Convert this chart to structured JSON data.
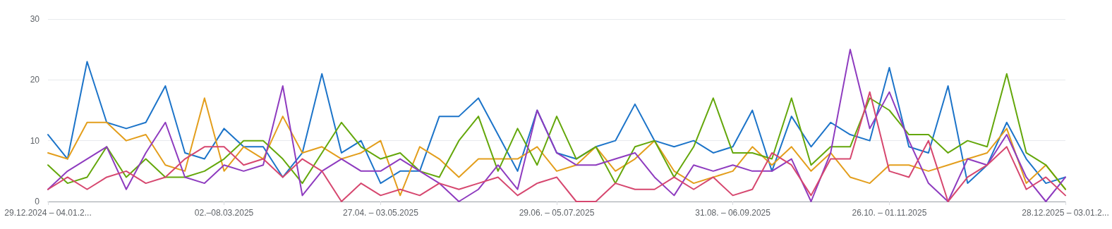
{
  "chart_data": {
    "type": "line",
    "categories": [
      "29.12.2024 – 04.01.2...",
      null,
      null,
      null,
      null,
      null,
      null,
      null,
      null,
      "02.–08.03.2025",
      null,
      null,
      null,
      null,
      null,
      null,
      null,
      "27.04. – 03.05.2025",
      null,
      null,
      null,
      null,
      null,
      null,
      null,
      null,
      "29.06. – 05.07.2025",
      null,
      null,
      null,
      null,
      null,
      null,
      null,
      null,
      "31.08. – 06.09.2025",
      null,
      null,
      null,
      null,
      null,
      null,
      null,
      "26.10. – 01.11.2025",
      null,
      null,
      null,
      null,
      null,
      null,
      null,
      null,
      "28.12.2025 – 03.01.2..."
    ],
    "series": [
      {
        "color": "#1c74c9",
        "values": [
          11,
          7,
          23,
          13,
          12,
          13,
          19,
          8,
          7,
          12,
          9,
          9,
          4,
          8,
          21,
          8,
          10,
          3,
          5,
          5,
          14,
          14,
          17,
          11,
          5,
          15,
          8,
          7,
          9,
          10,
          16,
          10,
          9,
          10,
          8,
          9,
          15,
          5,
          14,
          9,
          13,
          11,
          10,
          22,
          9,
          8,
          19,
          3,
          6,
          13,
          7,
          3,
          4
        ]
      },
      {
        "color": "#e39e1c",
        "values": [
          8,
          7,
          13,
          13,
          10,
          11,
          6,
          5,
          17,
          5,
          9,
          7,
          14,
          8,
          9,
          7,
          8,
          10,
          1,
          9,
          7,
          4,
          7,
          7,
          7,
          9,
          5,
          6,
          9,
          5,
          7,
          10,
          5,
          3,
          4,
          5,
          9,
          6,
          9,
          5,
          8,
          4,
          3,
          6,
          6,
          5,
          6,
          7,
          8,
          12,
          3,
          6,
          2
        ]
      },
      {
        "color": "#64a70b",
        "values": [
          6,
          3,
          4,
          9,
          4,
          7,
          4,
          4,
          5,
          7,
          10,
          10,
          7,
          3,
          8,
          13,
          9,
          7,
          8,
          5,
          4,
          10,
          14,
          5,
          12,
          6,
          14,
          7,
          9,
          3,
          9,
          10,
          4,
          9,
          17,
          8,
          8,
          7,
          17,
          6,
          9,
          9,
          17,
          15,
          11,
          11,
          8,
          10,
          9,
          21,
          8,
          6,
          2
        ]
      },
      {
        "color": "#8e3bbf",
        "values": [
          2,
          5,
          7,
          9,
          2,
          8,
          13,
          4,
          3,
          6,
          5,
          6,
          19,
          1,
          5,
          7,
          5,
          5,
          7,
          5,
          3,
          0,
          2,
          6,
          2,
          15,
          8,
          6,
          6,
          7,
          8,
          4,
          1,
          6,
          5,
          6,
          5,
          5,
          7,
          0,
          8,
          25,
          12,
          18,
          10,
          3,
          0,
          7,
          6,
          11,
          4,
          0,
          4
        ]
      },
      {
        "color": "#d6476f",
        "values": [
          2,
          4,
          2,
          4,
          5,
          3,
          4,
          7,
          9,
          9,
          6,
          7,
          4,
          7,
          5,
          0,
          3,
          1,
          2,
          1,
          3,
          2,
          3,
          4,
          1,
          3,
          4,
          0,
          0,
          3,
          2,
          2,
          4,
          2,
          4,
          1,
          2,
          8,
          6,
          1,
          7,
          7,
          18,
          5,
          4,
          10,
          0,
          4,
          6,
          9,
          2,
          4,
          1
        ]
      }
    ],
    "ylim": [
      0,
      30
    ],
    "yticks": [
      0,
      10,
      20,
      30
    ],
    "grid": "y",
    "marker": "none",
    "line_style": "solid"
  }
}
